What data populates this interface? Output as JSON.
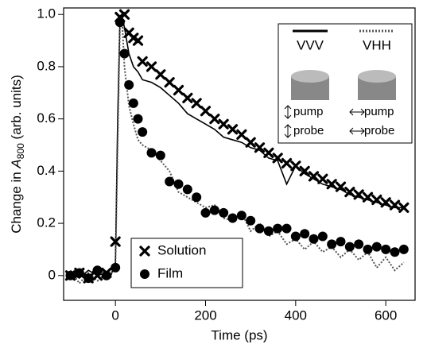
{
  "chart_data": {
    "type": "line",
    "x_label": "Time (ps)",
    "y_label": {
      "prefix": "Change in ",
      "symbol": "A",
      "subscript": "800",
      "suffix": " (arb. units)"
    },
    "xlim": [
      -115,
      665
    ],
    "xticks": [
      0,
      200,
      400,
      600
    ],
    "ylim": [
      -0.095,
      1.025
    ],
    "yticks": [
      0,
      0.2,
      0.4,
      0.6,
      0.8,
      {
        "value": 1,
        "label": "1.0"
      }
    ],
    "series": [
      {
        "name": "Solution",
        "color": "#000000",
        "marker": "x",
        "x": [
          -100,
          -80,
          -60,
          -40,
          -20,
          0,
          10,
          20,
          30,
          40,
          50,
          60,
          80,
          100,
          120,
          140,
          160,
          180,
          200,
          220,
          240,
          260,
          280,
          300,
          320,
          340,
          360,
          380,
          400,
          420,
          440,
          460,
          480,
          500,
          520,
          540,
          560,
          580,
          600,
          620,
          640
        ],
        "values": [
          0,
          0.01,
          -0.01,
          0,
          0.01,
          0.13,
          0.99,
          1.0,
          0.93,
          0.91,
          0.9,
          0.82,
          0.8,
          0.77,
          0.74,
          0.71,
          0.68,
          0.66,
          0.63,
          0.6,
          0.58,
          0.56,
          0.54,
          0.51,
          0.49,
          0.47,
          0.45,
          0.43,
          0.42,
          0.4,
          0.38,
          0.37,
          0.35,
          0.34,
          0.32,
          0.31,
          0.3,
          0.29,
          0.28,
          0.27,
          0.26
        ]
      },
      {
        "name": "Film",
        "color": "#000000",
        "marker": "circle",
        "x": [
          -100,
          -80,
          -60,
          -40,
          -20,
          0,
          10,
          20,
          30,
          40,
          50,
          60,
          80,
          100,
          120,
          140,
          160,
          180,
          200,
          220,
          240,
          260,
          280,
          300,
          320,
          340,
          360,
          380,
          400,
          420,
          440,
          460,
          480,
          500,
          520,
          540,
          560,
          580,
          600,
          620,
          640
        ],
        "values": [
          0,
          0.01,
          -0.01,
          0.02,
          0,
          0.03,
          0.97,
          0.85,
          0.73,
          0.66,
          0.6,
          0.55,
          0.47,
          0.46,
          0.36,
          0.35,
          0.33,
          0.3,
          0.24,
          0.25,
          0.24,
          0.22,
          0.23,
          0.21,
          0.18,
          0.17,
          0.18,
          0.18,
          0.15,
          0.16,
          0.14,
          0.15,
          0.12,
          0.13,
          0.11,
          0.12,
          0.1,
          0.11,
          0.1,
          0.09,
          0.1
        ]
      },
      {
        "name": "VVV",
        "color": "#000000",
        "style": "solid",
        "x": [
          -100,
          -80,
          -60,
          -40,
          -20,
          -10,
          0,
          5,
          10,
          15,
          20,
          30,
          40,
          50,
          60,
          80,
          100,
          120,
          140,
          160,
          180,
          200,
          220,
          240,
          260,
          280,
          300,
          320,
          340,
          360,
          380,
          400,
          420,
          440,
          460,
          480,
          500,
          520,
          540,
          560,
          580,
          600,
          620,
          640
        ],
        "values": [
          0.01,
          -0.01,
          0.02,
          0,
          0.01,
          0,
          0.05,
          0.6,
          0.98,
          0.99,
          0.95,
          0.85,
          0.8,
          0.78,
          0.75,
          0.74,
          0.72,
          0.69,
          0.66,
          0.62,
          0.6,
          0.58,
          0.56,
          0.53,
          0.52,
          0.51,
          0.49,
          0.48,
          0.45,
          0.44,
          0.35,
          0.42,
          0.39,
          0.37,
          0.35,
          0.34,
          0.33,
          0.31,
          0.3,
          0.29,
          0.28,
          0.27,
          0.26,
          0.26
        ]
      },
      {
        "name": "VHH",
        "color": "#555555",
        "style": "dotted",
        "x": [
          -100,
          -80,
          -60,
          -40,
          -20,
          -10,
          0,
          5,
          10,
          15,
          20,
          30,
          40,
          50,
          60,
          80,
          100,
          120,
          140,
          160,
          180,
          200,
          220,
          240,
          260,
          280,
          300,
          320,
          340,
          360,
          380,
          400,
          420,
          440,
          460,
          480,
          500,
          520,
          540,
          560,
          580,
          600,
          620,
          640
        ],
        "values": [
          0.02,
          -0.03,
          0.01,
          -0.02,
          0,
          0.01,
          0.03,
          0.5,
          0.95,
          0.97,
          0.8,
          0.65,
          0.58,
          0.52,
          0.5,
          0.48,
          0.44,
          0.4,
          0.32,
          0.3,
          0.28,
          0.26,
          0.27,
          0.22,
          0.21,
          0.24,
          0.17,
          0.2,
          0.15,
          0.17,
          0.12,
          0.14,
          0.1,
          0.13,
          0.09,
          0.11,
          0.07,
          0.1,
          0.06,
          0.09,
          0.03,
          0.07,
          0.02,
          0.05
        ]
      }
    ],
    "inset": {
      "labels": [
        "pump",
        "probe",
        "pump",
        "probe"
      ]
    }
  }
}
